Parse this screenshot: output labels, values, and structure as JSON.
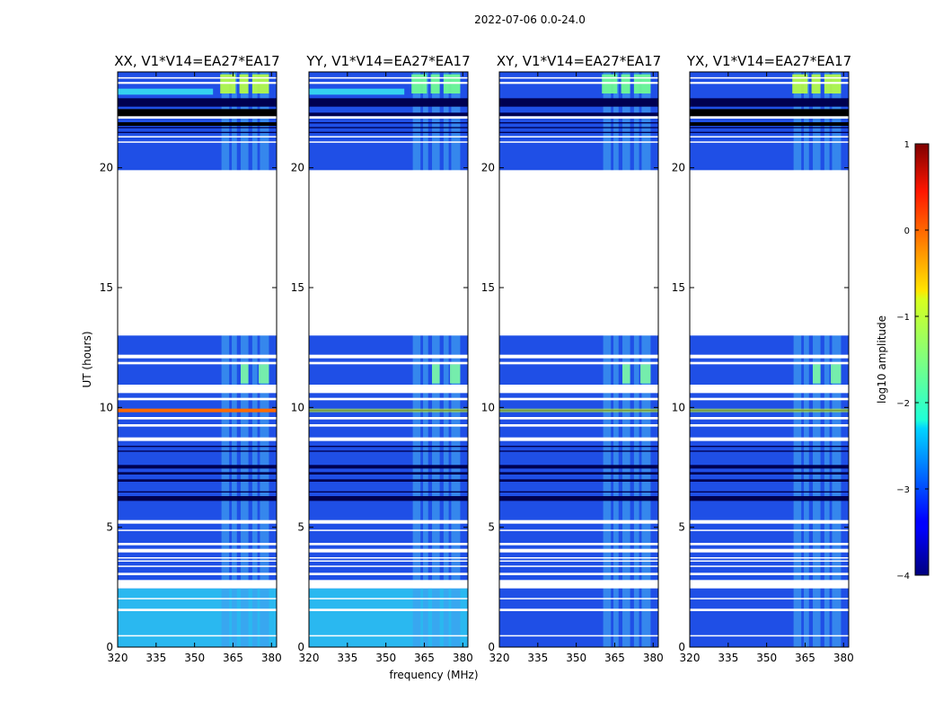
{
  "chart_data": {
    "type": "heatmap",
    "suptitle": "2022-07-06 0.0-24.0",
    "xlabel": "frequency (MHz)",
    "ylabel": "UT (hours)",
    "xlim": [
      320,
      382
    ],
    "ylim": [
      0,
      24
    ],
    "xticks": [
      320,
      335,
      350,
      365,
      380
    ],
    "yticks": [
      0,
      5,
      10,
      15,
      20
    ],
    "panels": [
      {
        "title": "XX, V1*V14=EA27*EA17",
        "pol": "XX",
        "hot_row": true
      },
      {
        "title": "YY, V1*V14=EA27*EA17",
        "pol": "YY",
        "hot_row": false
      },
      {
        "title": "XY, V1*V14=EA27*EA17",
        "pol": "XY",
        "hot_row": false
      },
      {
        "title": "YX, V1*V14=EA27*EA17",
        "pol": "YX",
        "hot_row": false
      }
    ],
    "data_gaps_hours": [
      [
        13.0,
        19.9
      ],
      [
        10.75,
        10.95
      ],
      [
        12.05,
        12.2
      ],
      [
        2.45,
        2.75
      ]
    ],
    "rfi_band_mhz": [
      360,
      380
    ],
    "colorbar": {
      "label": "log10 amplitude",
      "colormap": "jet",
      "vmin": -4,
      "vmax": 1,
      "ticks": [
        1,
        0,
        -1,
        -2,
        -3,
        -4
      ]
    }
  }
}
